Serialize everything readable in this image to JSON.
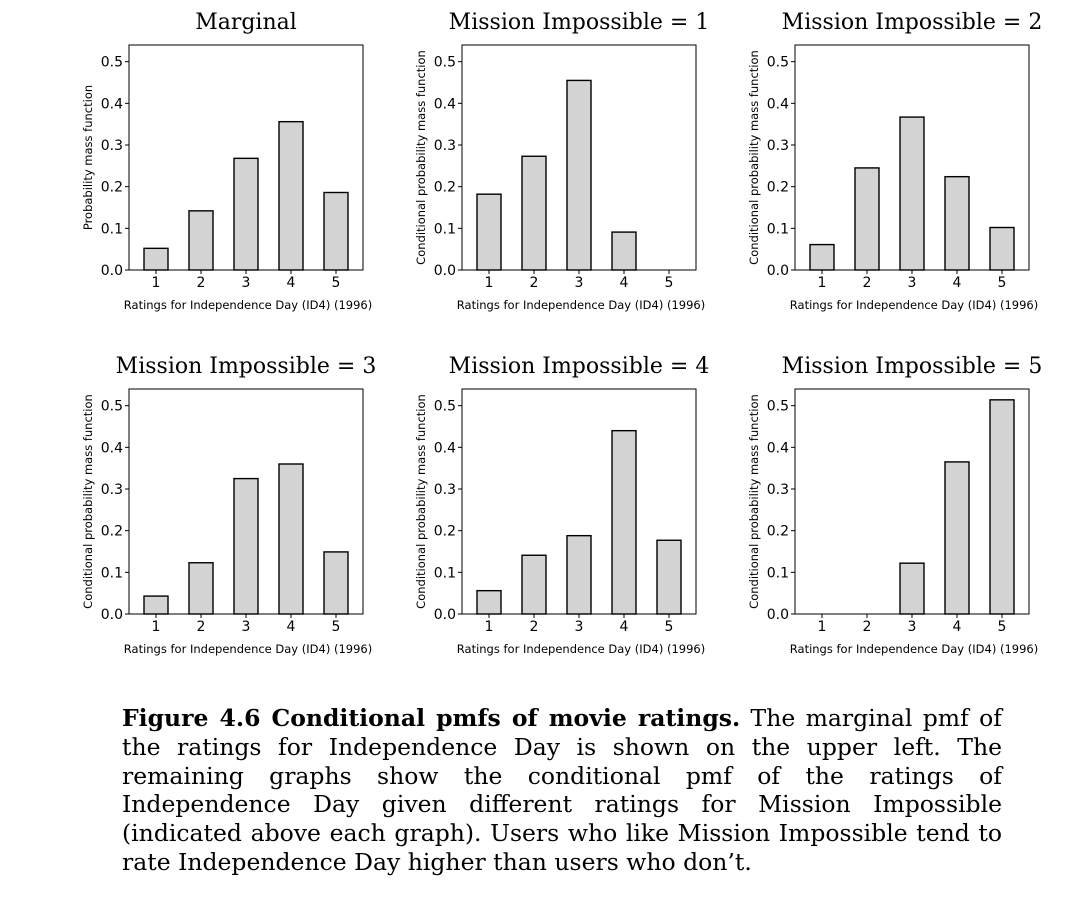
{
  "chart_data": [
    {
      "type": "bar",
      "title": "Marginal",
      "categories": [
        "1",
        "2",
        "3",
        "4",
        "5"
      ],
      "values": [
        0.052,
        0.142,
        0.268,
        0.356,
        0.186
      ],
      "xlabel": "Ratings for Independence Day (ID4) (1996)",
      "ylabel": "Probability mass function",
      "yticks": [
        "0.0",
        "0.1",
        "0.2",
        "0.3",
        "0.4",
        "0.5"
      ],
      "ylim": [
        0,
        0.54
      ],
      "grid": false
    },
    {
      "type": "bar",
      "title": "Mission Impossible = 1",
      "categories": [
        "1",
        "2",
        "3",
        "4",
        "5"
      ],
      "values": [
        0.182,
        0.273,
        0.455,
        0.091,
        0.0
      ],
      "xlabel": "Ratings for Independence Day (ID4) (1996)",
      "ylabel": "Conditional probability mass function",
      "yticks": [
        "0.0",
        "0.1",
        "0.2",
        "0.3",
        "0.4",
        "0.5"
      ],
      "ylim": [
        0,
        0.54
      ],
      "grid": false
    },
    {
      "type": "bar",
      "title": "Mission Impossible = 2",
      "categories": [
        "1",
        "2",
        "3",
        "4",
        "5"
      ],
      "values": [
        0.061,
        0.245,
        0.367,
        0.224,
        0.102
      ],
      "xlabel": "Ratings for Independence Day (ID4) (1996)",
      "ylabel": "Conditional probability mass function",
      "yticks": [
        "0.0",
        "0.1",
        "0.2",
        "0.3",
        "0.4",
        "0.5"
      ],
      "ylim": [
        0,
        0.54
      ],
      "grid": false
    },
    {
      "type": "bar",
      "title": "Mission Impossible = 3",
      "categories": [
        "1",
        "2",
        "3",
        "4",
        "5"
      ],
      "values": [
        0.043,
        0.123,
        0.325,
        0.36,
        0.149
      ],
      "xlabel": "Ratings for Independence Day (ID4) (1996)",
      "ylabel": "Conditional probability mass function",
      "yticks": [
        "0.0",
        "0.1",
        "0.2",
        "0.3",
        "0.4",
        "0.5"
      ],
      "ylim": [
        0,
        0.54
      ],
      "grid": false
    },
    {
      "type": "bar",
      "title": "Mission Impossible = 4",
      "categories": [
        "1",
        "2",
        "3",
        "4",
        "5"
      ],
      "values": [
        0.056,
        0.141,
        0.188,
        0.44,
        0.177
      ],
      "xlabel": "Ratings for Independence Day (ID4) (1996)",
      "ylabel": "Conditional probability mass function",
      "yticks": [
        "0.0",
        "0.1",
        "0.2",
        "0.3",
        "0.4",
        "0.5"
      ],
      "ylim": [
        0,
        0.54
      ],
      "grid": false
    },
    {
      "type": "bar",
      "title": "Mission Impossible = 5",
      "categories": [
        "1",
        "2",
        "3",
        "4",
        "5"
      ],
      "values": [
        0.0,
        0.0,
        0.122,
        0.365,
        0.514
      ],
      "xlabel": "Ratings for Independence Day (ID4) (1996)",
      "ylabel": "Conditional probability mass function",
      "yticks": [
        "0.0",
        "0.1",
        "0.2",
        "0.3",
        "0.4",
        "0.5"
      ],
      "ylim": [
        0,
        0.54
      ],
      "grid": false
    }
  ],
  "colors": {
    "bar_fill": "#d3d3d3",
    "bar_edge": "#000000",
    "axes": "#000000"
  },
  "caption": {
    "lead": "Figure 4.6 Conditional pmfs of movie ratings.",
    "body": "The marginal pmf of the ratings for Independence Day is shown on the upper left. The remaining graphs show the conditional pmf of the ratings of Independence Day given different ratings for Mission Impossible (indicated above each graph). Users who like Mission Impossible tend to rate Independence Day higher than users who don’t."
  }
}
